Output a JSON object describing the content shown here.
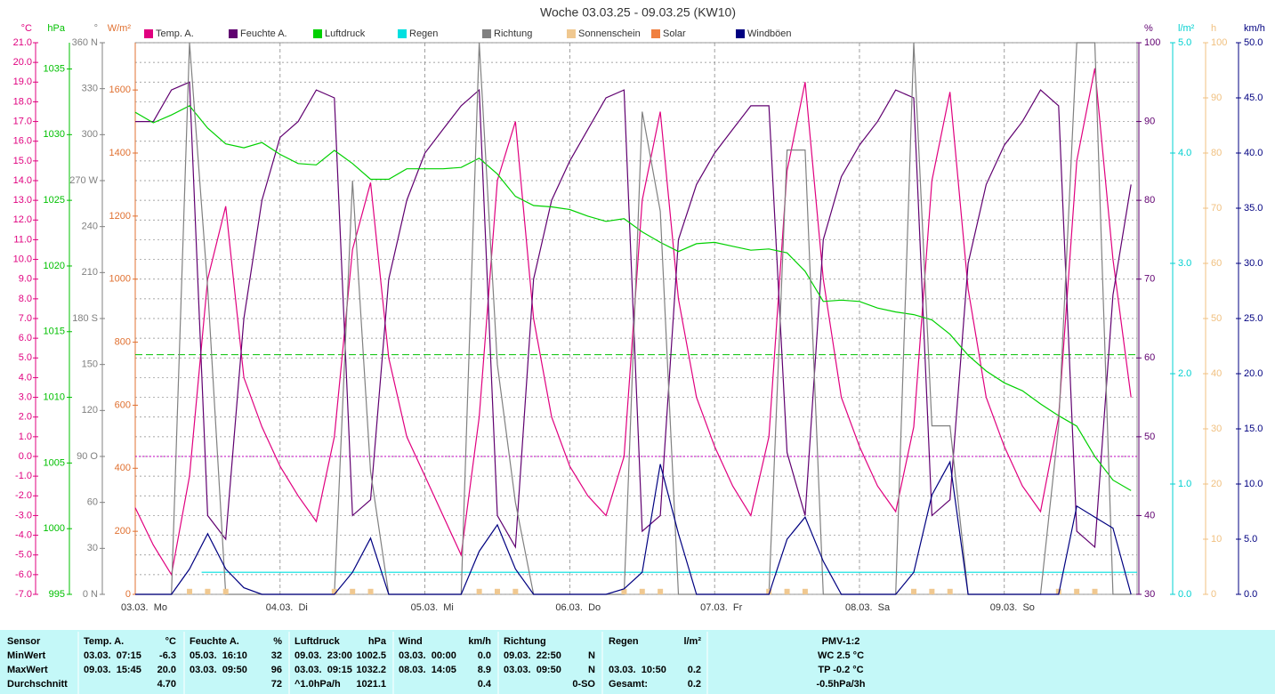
{
  "chart_data": {
    "type": "line",
    "title": "Woche 03.03.25 - 09.03.25 (KW10)",
    "xlim": [
      0,
      166
    ],
    "xticks": [
      {
        "value": 0,
        "label": "03.03.  Mo"
      },
      {
        "value": 24,
        "label": "04.03.  Di"
      },
      {
        "value": 48,
        "label": "05.03.  Mi"
      },
      {
        "value": 72,
        "label": "06.03.  Do"
      },
      {
        "value": 96,
        "label": "07.03.  Fr"
      },
      {
        "value": 120,
        "label": "08.03.  Sa"
      },
      {
        "value": 144,
        "label": "09.03.  So"
      }
    ],
    "axes": [
      {
        "unit": "°C",
        "color": "#e0007f",
        "side": "left",
        "grid": true,
        "lim": [
          -7,
          21
        ],
        "ticks": [
          {
            "value": -7,
            "label": "-7.0"
          },
          {
            "value": -6,
            "label": "-6.0"
          },
          {
            "value": -5,
            "label": "-5.0"
          },
          {
            "value": -4,
            "label": "-4.0"
          },
          {
            "value": -3,
            "label": "-3.0"
          },
          {
            "value": -2,
            "label": "-2.0"
          },
          {
            "value": -1,
            "label": "-1.0"
          },
          {
            "value": 0,
            "label": "0.0"
          },
          {
            "value": 1,
            "label": "1.0"
          },
          {
            "value": 2,
            "label": "2.0"
          },
          {
            "value": 3,
            "label": "3.0"
          },
          {
            "value": 4,
            "label": "4.0"
          },
          {
            "value": 5,
            "label": "5.0"
          },
          {
            "value": 6,
            "label": "6.0"
          },
          {
            "value": 7,
            "label": "7.0"
          },
          {
            "value": 8,
            "label": "8.0"
          },
          {
            "value": 9,
            "label": "9.0"
          },
          {
            "value": 10,
            "label": "10.0"
          },
          {
            "value": 11,
            "label": "11.0"
          },
          {
            "value": 12,
            "label": "12.0"
          },
          {
            "value": 13,
            "label": "13.0"
          },
          {
            "value": 14,
            "label": "14.0"
          },
          {
            "value": 15,
            "label": "15.0"
          },
          {
            "value": 16,
            "label": "16.0"
          },
          {
            "value": 17,
            "label": "17.0"
          },
          {
            "value": 18,
            "label": "18.0"
          },
          {
            "value": 19,
            "label": "19.0"
          },
          {
            "value": 20,
            "label": "20.0"
          },
          {
            "value": 21,
            "label": "21.0"
          }
        ]
      },
      {
        "unit": "hPa",
        "color": "#00c000",
        "side": "left",
        "lim": [
          995,
          1037
        ],
        "ticks": [
          995,
          1000,
          1005,
          1010,
          1015,
          1020,
          1025,
          1030,
          1035
        ]
      },
      {
        "unit": "°",
        "color": "#808080",
        "side": "left",
        "lim": [
          0,
          360
        ],
        "ticks": [
          {
            "value": 0,
            "label": "0 N"
          },
          30,
          60,
          {
            "value": 90,
            "label": "90 O"
          },
          120,
          150,
          {
            "value": 180,
            "label": "180 S"
          },
          210,
          240,
          {
            "value": 270,
            "label": "270 W"
          },
          300,
          330,
          {
            "value": 360,
            "label": "360 N"
          }
        ]
      },
      {
        "unit": "W/m²",
        "color": "#e07030",
        "side": "left",
        "lim": [
          0,
          1750
        ],
        "ticks": [
          0,
          200,
          400,
          600,
          800,
          1000,
          1200,
          1400,
          1600
        ]
      },
      {
        "unit": "%",
        "color": "#600070",
        "side": "right",
        "lim": [
          30,
          100
        ],
        "ticks": [
          30,
          40,
          50,
          60,
          70,
          80,
          90,
          100
        ]
      },
      {
        "unit": "l/m²",
        "color": "#00d0d0",
        "side": "right",
        "lim": [
          0,
          5
        ],
        "ticks": [
          {
            "value": 0,
            "label": "0.0"
          },
          {
            "value": 1,
            "label": "1.0"
          },
          {
            "value": 2,
            "label": "2.0"
          },
          {
            "value": 3,
            "label": "3.0"
          },
          {
            "value": 4,
            "label": "4.0"
          },
          {
            "value": 5,
            "label": "5.0"
          }
        ]
      },
      {
        "unit": "h",
        "color": "#f0c080",
        "side": "right",
        "lim": [
          0,
          100
        ],
        "ticks": [
          0,
          10,
          20,
          30,
          40,
          50,
          60,
          70,
          80,
          90,
          100
        ]
      },
      {
        "unit": "km/h",
        "color": "#000080",
        "side": "right",
        "lim": [
          0,
          50
        ],
        "ticks": [
          {
            "value": 0,
            "label": "0.0"
          },
          {
            "value": 5,
            "label": "5.0"
          },
          {
            "value": 10,
            "label": "10.0"
          },
          {
            "value": 15,
            "label": "15.0"
          },
          {
            "value": 20,
            "label": "20.0"
          },
          {
            "value": 25,
            "label": "25.0"
          },
          {
            "value": 30,
            "label": "30.0"
          },
          {
            "value": 35,
            "label": "35.0"
          },
          {
            "value": 40,
            "label": "40.0"
          },
          {
            "value": 45,
            "label": "45.0"
          },
          {
            "value": 50,
            "label": "50.0"
          }
        ]
      }
    ],
    "reference_lines": [
      {
        "axis": "hPa",
        "value": 1013.25,
        "color": "#00c000",
        "dash": true
      },
      {
        "axis": "°C",
        "value": 0,
        "color": "#c000c0",
        "dash": false
      }
    ],
    "x": [
      0,
      3,
      6,
      9,
      12,
      15,
      18,
      21,
      24,
      27,
      30,
      33,
      36,
      39,
      42,
      45,
      48,
      51,
      54,
      57,
      60,
      63,
      66,
      69,
      72,
      75,
      78,
      81,
      84,
      87,
      90,
      93,
      96,
      99,
      102,
      105,
      108,
      111,
      114,
      117,
      120,
      123,
      126,
      129,
      132,
      135,
      138,
      141,
      144,
      147,
      150,
      153,
      156,
      159,
      162,
      165
    ],
    "series": [
      {
        "name": "Temp. A.",
        "color": "#e0007f",
        "axis": "°C",
        "style": "line",
        "values": [
          -2.6,
          -4.5,
          -6.0,
          -1.0,
          9.0,
          12.7,
          4.0,
          1.5,
          -0.5,
          -2.0,
          -3.3,
          1.0,
          10.5,
          13.9,
          5.0,
          1.0,
          -1.0,
          -3.0,
          -5.0,
          2.0,
          14.0,
          17.0,
          7.0,
          2.0,
          -0.5,
          -2.0,
          -3.0,
          0.0,
          13.0,
          17.5,
          8.0,
          3.0,
          0.5,
          -1.5,
          -3.0,
          1.0,
          14.5,
          19.0,
          9.0,
          3.0,
          0.5,
          -1.5,
          -2.8,
          1.5,
          14.0,
          18.5,
          8.5,
          3.0,
          0.5,
          -1.5,
          -2.8,
          2.0,
          15.0,
          19.7,
          10.0,
          3.0
        ]
      },
      {
        "name": "Feuchte A.",
        "color": "#600070",
        "axis": "%",
        "style": "line",
        "values": [
          90,
          90,
          94,
          95,
          40,
          37,
          65,
          80,
          88,
          90,
          94,
          93,
          40,
          42,
          70,
          80,
          86,
          89,
          92,
          94,
          40,
          36,
          70,
          80,
          85,
          89,
          93,
          94,
          38,
          40,
          75,
          82,
          86,
          89,
          92,
          92,
          48,
          40,
          75,
          83,
          87,
          90,
          94,
          93,
          40,
          42,
          72,
          82,
          87,
          90,
          94,
          92,
          38,
          36,
          68,
          82
        ]
      },
      {
        "name": "Luftdruck",
        "color": "#00d000",
        "axis": "hPa",
        "style": "line",
        "values": [
          1031.7,
          1030.9,
          1031.5,
          1032.2,
          1030.5,
          1029.3,
          1029.0,
          1029.4,
          1028.5,
          1027.8,
          1027.7,
          1028.8,
          1027.8,
          1026.6,
          1026.6,
          1027.4,
          1027.4,
          1027.4,
          1027.5,
          1028.2,
          1027.0,
          1025.3,
          1024.6,
          1024.5,
          1024.3,
          1023.8,
          1023.4,
          1023.6,
          1022.6,
          1021.8,
          1021.1,
          1021.7,
          1021.8,
          1021.5,
          1021.2,
          1021.3,
          1021.0,
          1019.6,
          1017.3,
          1017.4,
          1017.3,
          1016.8,
          1016.5,
          1016.3,
          1015.9,
          1014.8,
          1013.2,
          1012.0,
          1011.1,
          1010.5,
          1009.5,
          1008.6,
          1007.8,
          1005.5,
          1003.7,
          1002.9
        ]
      },
      {
        "name": "Regen",
        "color": "#00e0e0",
        "axis": "l/m²",
        "style": "line",
        "x": [
          11,
          166
        ],
        "values": [
          0.2,
          0.2
        ]
      },
      {
        "name": "Richtung",
        "color": "#808080",
        "axis": "°",
        "style": "line",
        "values": [
          0,
          0,
          0,
          360,
          200,
          0,
          0,
          0,
          0,
          0,
          0,
          0,
          270,
          80,
          0,
          0,
          0,
          0,
          0,
          360,
          150,
          60,
          0,
          0,
          0,
          0,
          0,
          0,
          315,
          250,
          0,
          0,
          0,
          0,
          0,
          0,
          290,
          290,
          0,
          0,
          0,
          0,
          0,
          360,
          110,
          110,
          0,
          0,
          0,
          0,
          0,
          110,
          360,
          360,
          0,
          0
        ]
      },
      {
        "name": "Sonnenschein",
        "color": "#f0c890",
        "axis": "h",
        "style": "bar",
        "values": [
          0,
          0,
          0,
          1,
          1,
          1,
          0,
          0,
          0,
          0,
          0,
          1,
          1,
          1,
          0,
          0,
          0,
          0,
          0,
          1,
          1,
          1,
          0,
          0,
          0,
          0,
          0,
          1,
          1,
          1,
          0,
          0,
          0,
          0,
          0,
          1,
          1,
          1,
          0,
          0,
          0,
          0,
          0,
          1,
          1,
          1,
          0,
          0,
          0,
          0,
          0,
          1,
          1,
          1,
          0,
          0
        ]
      },
      {
        "name": "Solar",
        "color": "#f08040",
        "axis": "W/m²",
        "style": "line"
      },
      {
        "name": "Windböen",
        "color": "#000080",
        "axis": "km/h",
        "style": "line",
        "values": [
          0,
          0,
          0,
          2.3,
          5.5,
          2.3,
          0.6,
          0,
          0,
          0,
          0,
          0,
          2,
          5.1,
          0,
          0,
          0,
          0,
          0,
          3.9,
          6.3,
          2.3,
          0,
          0,
          0,
          0,
          0,
          0.5,
          2,
          11.8,
          5.5,
          0,
          0,
          0,
          0,
          0,
          5,
          7,
          3,
          0,
          0,
          0,
          0,
          2,
          9,
          12,
          0,
          0,
          0,
          0,
          0,
          0,
          8,
          7,
          6,
          0
        ]
      }
    ]
  },
  "table": {
    "columns": {
      "sensor": "Sensor",
      "temp_time": "Temp. A.",
      "temp": "°C",
      "hum_time": "Feuchte A.",
      "hum": "%",
      "press_time": "Luftdruck",
      "press": "hPa",
      "wind_time": "Wind",
      "wind": "km/h",
      "dir_time": "Richtung",
      "rain_time": "Regen",
      "rain": "l/m²",
      "pmv": "PMV-1:2"
    },
    "rows": [
      {
        "sensor": "MinWert",
        "temp_time": "03.03.  07:15",
        "temp": "-6.3",
        "hum_time": "05.03.  16:10",
        "hum": "32",
        "press_time": "09.03.  23:00",
        "press": "1002.5",
        "wind_time": "03.03.  00:00",
        "wind": "0.0",
        "dir_time": "09.03.  22:50",
        "dir": "N",
        "pmv": "WC 2.5 °C"
      },
      {
        "sensor": "MaxWert",
        "temp_time": "09.03.  15:45",
        "temp": "20.0",
        "hum_time": "03.03.  09:50",
        "hum": "96",
        "press_time": "03.03.  09:15",
        "press": "1032.2",
        "wind_time": "08.03.  14:05",
        "wind": "8.9",
        "dir_time": "03.03.  09:50",
        "dir": "N",
        "rain_time": "03.03.  10:50",
        "rain": "0.2",
        "pmv": "TP -0.2 °C"
      },
      {
        "sensor": "Durchschnitt",
        "temp": "4.70",
        "hum": "72",
        "press_time": "^1.0hPa/h",
        "press": "1021.1",
        "wind": "0.4",
        "dir": "0-SO",
        "rain_time": "Gesamt:",
        "rain": "0.2",
        "pmv": "-0.5hPa/3h"
      }
    ]
  }
}
